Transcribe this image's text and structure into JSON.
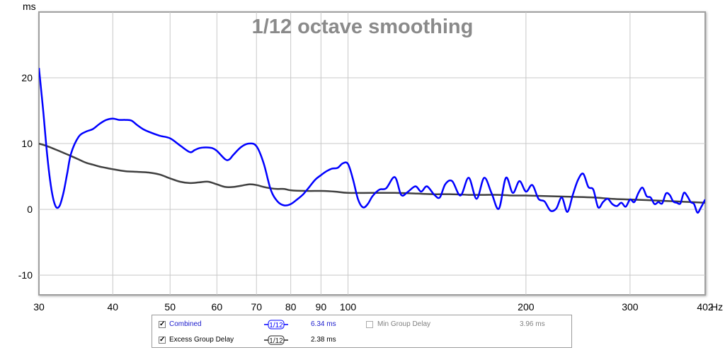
{
  "chart_data": {
    "type": "line",
    "title": "1/12 octave smoothing",
    "ylabel": "ms",
    "xunit": "Hz",
    "x_scale": "log",
    "xlim": [
      30,
      402
    ],
    "ylim": [
      -13,
      30
    ],
    "grid": true,
    "x_ticks": [
      30,
      40,
      50,
      60,
      70,
      80,
      90,
      100,
      200,
      300,
      402
    ],
    "x_tick_labels": [
      "30",
      "40",
      "50",
      "60",
      "70",
      "80",
      "90",
      "100",
      "200",
      "300",
      "402"
    ],
    "y_ticks": [
      20,
      10,
      0,
      -10
    ],
    "y_tick_labels": [
      "20",
      "10",
      "0",
      "-10"
    ],
    "series": [
      {
        "name": "Combined",
        "color": "#0000ff",
        "x": [
          30,
          30.5,
          31,
          31.5,
          32,
          32.5,
          33,
          33.5,
          34,
          35,
          36,
          37,
          38,
          39,
          40,
          41,
          42,
          43,
          44,
          45,
          46,
          48,
          50,
          52,
          54,
          55,
          56,
          57,
          58,
          59,
          60,
          62,
          63,
          64,
          66,
          68,
          70,
          72,
          74,
          76,
          78,
          80,
          82,
          84,
          86,
          88,
          90,
          92,
          94,
          96,
          98,
          100,
          102,
          104,
          106,
          108,
          110,
          113,
          116,
          120,
          123,
          126,
          130,
          133,
          136,
          140,
          143,
          146,
          150,
          155,
          160,
          165,
          170,
          175,
          180,
          185,
          190,
          195,
          200,
          205,
          210,
          215,
          220,
          225,
          230,
          235,
          240,
          245,
          250,
          255,
          260,
          265,
          270,
          275,
          280,
          285,
          290,
          295,
          300,
          305,
          310,
          315,
          320,
          325,
          330,
          335,
          340,
          345,
          350,
          355,
          360,
          365,
          370,
          375,
          380,
          385,
          390,
          395,
          402
        ],
        "y": [
          21.5,
          15,
          8,
          3,
          0.5,
          0.5,
          2.5,
          5.5,
          8.5,
          11,
          11.8,
          12.2,
          13,
          13.6,
          13.8,
          13.6,
          13.6,
          13.5,
          12.8,
          12.2,
          11.8,
          11.2,
          10.8,
          9.7,
          8.7,
          9,
          9.3,
          9.4,
          9.4,
          9.3,
          8.9,
          7.6,
          7.6,
          8.3,
          9.5,
          10,
          9.6,
          7,
          3,
          1.2,
          0.6,
          0.8,
          1.5,
          2.3,
          3.4,
          4.5,
          5.2,
          5.8,
          6.2,
          6.3,
          7,
          6.9,
          4.5,
          1.5,
          0.3,
          0.8,
          2,
          3,
          3.2,
          4.9,
          2.2,
          2.6,
          3.5,
          2.7,
          3.5,
          2.2,
          1.8,
          3.8,
          4.3,
          2.1,
          4.8,
          1.6,
          4.8,
          2.4,
          0.1,
          4.8,
          2.5,
          4.3,
          2.7,
          3.7,
          1.6,
          1.2,
          -0.2,
          0.1,
          1.8,
          -0.4,
          2.2,
          4.5,
          5.4,
          3.4,
          3,
          0.3,
          1.1,
          1.6,
          0.8,
          0.5,
          1,
          0.4,
          1.5,
          1.1,
          2.5,
          3.3,
          2,
          1.8,
          0.8,
          1.1,
          0.9,
          2.4,
          2.2,
          1.2,
          1,
          0.9,
          2.5,
          2,
          1.1,
          0.8,
          -0.5,
          0.2,
          1.5
        ]
      },
      {
        "name": "Excess Group Delay",
        "color": "#404040",
        "x": [
          30,
          31,
          32,
          33,
          34,
          35,
          36,
          37,
          38,
          39,
          40,
          42,
          44,
          46,
          48,
          50,
          52,
          54,
          56,
          58,
          60,
          62,
          64,
          66,
          68,
          70,
          72,
          74,
          76,
          78,
          80,
          85,
          90,
          95,
          100,
          110,
          120,
          130,
          140,
          150,
          160,
          170,
          180,
          190,
          200,
          220,
          240,
          260,
          280,
          300,
          320,
          340,
          360,
          380,
          402
        ],
        "y": [
          10,
          9.6,
          9.1,
          8.6,
          8.1,
          7.6,
          7.1,
          6.8,
          6.5,
          6.3,
          6.1,
          5.8,
          5.7,
          5.6,
          5.3,
          4.7,
          4.2,
          4,
          4.1,
          4.2,
          3.8,
          3.4,
          3.4,
          3.6,
          3.8,
          3.7,
          3.4,
          3.2,
          3.1,
          3.1,
          2.9,
          2.8,
          2.8,
          2.7,
          2.5,
          2.5,
          2.5,
          2.4,
          2.3,
          2.3,
          2.2,
          2.2,
          2.2,
          2.1,
          2.1,
          2,
          1.9,
          1.8,
          1.6,
          1.5,
          1.4,
          1.3,
          1.2,
          1.1,
          1
        ]
      }
    ]
  },
  "legend": {
    "combined_label": "Combined",
    "combined_checked": true,
    "combined_smoothing": "1/12",
    "combined_value": "6.34 ms",
    "min_group_delay_label": "Min Group Delay",
    "min_group_delay_checked": false,
    "min_group_delay_value": "3.96 ms",
    "excess_label": "Excess Group Delay",
    "excess_checked": true,
    "excess_smoothing": "1/12",
    "excess_value": "2.38 ms"
  },
  "colors": {
    "combined_legend_text": "#1a1acc",
    "disabled_text": "#808080",
    "grid": "#c8c8c8",
    "plot_border": "#a0a0a0"
  }
}
